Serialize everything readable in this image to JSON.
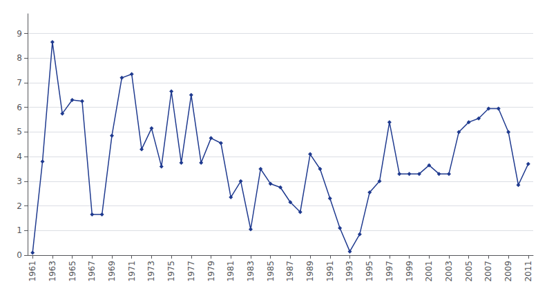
{
  "chart_data": {
    "type": "line",
    "x": [
      1961,
      1962,
      1963,
      1964,
      1965,
      1966,
      1967,
      1968,
      1969,
      1970,
      1971,
      1972,
      1973,
      1974,
      1975,
      1976,
      1977,
      1978,
      1979,
      1980,
      1981,
      1982,
      1983,
      1984,
      1985,
      1986,
      1987,
      1988,
      1989,
      1990,
      1991,
      1992,
      1993,
      1994,
      1995,
      1996,
      1997,
      1998,
      1999,
      2000,
      2001,
      2002,
      2003,
      2004,
      2005,
      2006,
      2007,
      2008,
      2009,
      2010,
      2011
    ],
    "values": [
      0.1,
      3.8,
      8.65,
      5.75,
      6.3,
      6.25,
      1.65,
      1.65,
      4.85,
      7.2,
      7.35,
      4.3,
      5.15,
      3.6,
      6.65,
      3.75,
      6.5,
      3.75,
      4.75,
      4.55,
      2.35,
      3.0,
      1.05,
      3.5,
      2.9,
      2.75,
      2.15,
      1.75,
      4.1,
      3.5,
      2.3,
      1.1,
      0.15,
      0.85,
      2.55,
      3.0,
      5.4,
      3.3,
      3.3,
      3.3,
      3.65,
      3.3,
      3.3,
      5.0,
      5.4,
      5.55,
      5.95,
      5.95,
      5.0,
      2.85,
      3.7
    ],
    "color": "#1F3A8F",
    "marker": "diamond",
    "line_style": "solid",
    "xlim": [
      1960.5,
      2011.5
    ],
    "xticks": [
      1961,
      1963,
      1965,
      1967,
      1969,
      1971,
      1973,
      1975,
      1977,
      1979,
      1981,
      1983,
      1985,
      1987,
      1989,
      1991,
      1993,
      1995,
      1997,
      1999,
      2001,
      2003,
      2005,
      2007,
      2009,
      2011
    ],
    "ylim": [
      0,
      9.8
    ],
    "yticks": [
      0,
      1,
      2,
      3,
      4,
      5,
      6,
      7,
      8,
      9
    ],
    "grid": true
  }
}
